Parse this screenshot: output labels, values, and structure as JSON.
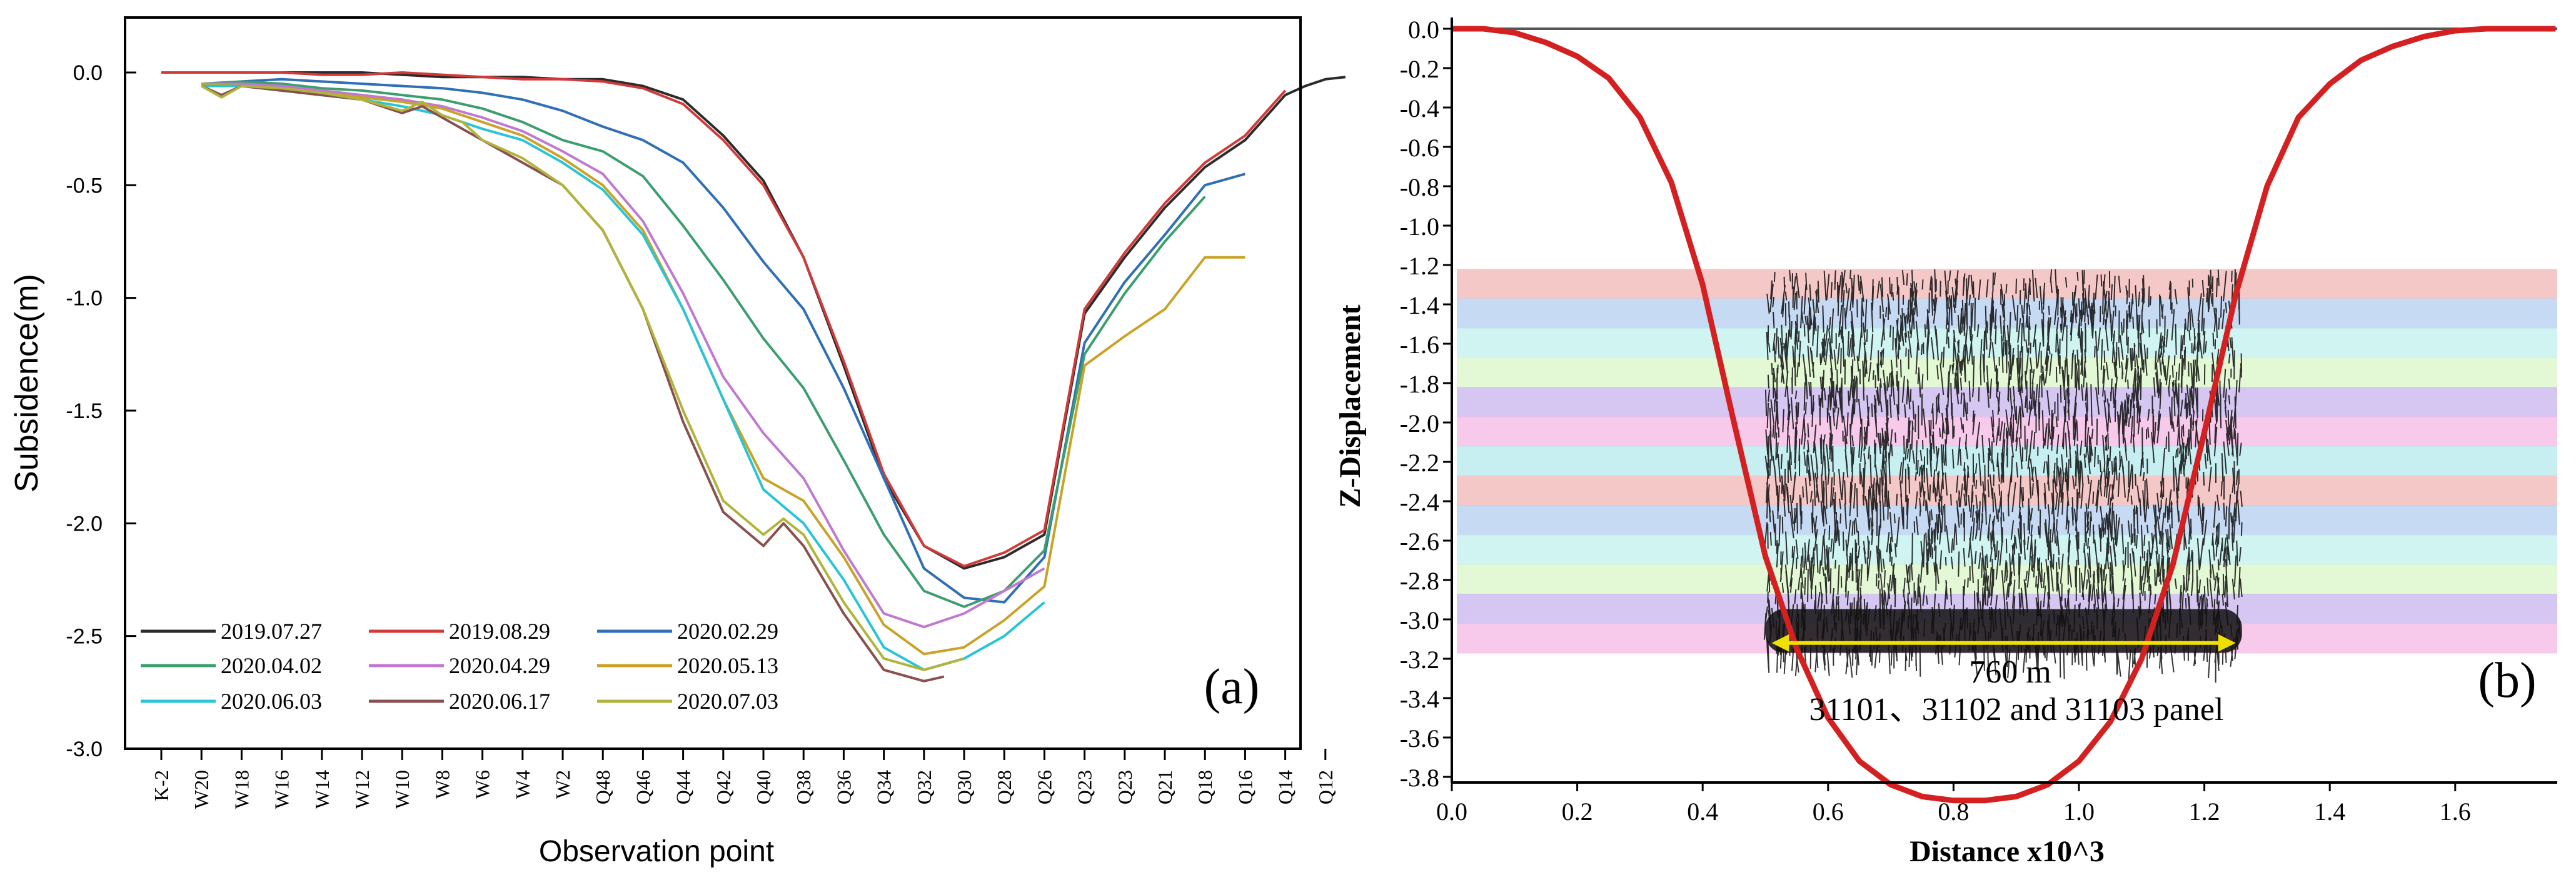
{
  "chart_data": [
    {
      "type": "line",
      "panel_label": "(a)",
      "xlabel": "Observation point",
      "ylabel": "Subsidence(m)",
      "ylim": [
        -3.0,
        0.1
      ],
      "yticks": [
        0.0,
        -0.5,
        -1.0,
        -1.5,
        -2.0,
        -2.5,
        -3.0
      ],
      "ytick_labels": [
        "0.0",
        "-0.5",
        "-1.0",
        "-1.5",
        "-2.0",
        "-2.5",
        "-3.0"
      ],
      "categories": [
        "K-2",
        "W20",
        "W18",
        "W16",
        "W14",
        "W12",
        "W10",
        "W8",
        "W6",
        "W4",
        "W2",
        "Q48",
        "Q46",
        "Q44",
        "Q42",
        "Q40",
        "Q38",
        "Q36",
        "Q34",
        "Q32",
        "Q30",
        "Q28",
        "Q26",
        "Q23",
        "Q23",
        "Q21",
        "Q18",
        "Q16",
        "Q14",
        "Q12"
      ],
      "legend_position": "bottom-left",
      "grid": false,
      "series": [
        {
          "name": "2019.07.27",
          "color": "#2b2b2b",
          "x": [
            0,
            1,
            2,
            3,
            4,
            5,
            6,
            7,
            8,
            9,
            10,
            11,
            12,
            13,
            14,
            15,
            16,
            17,
            18,
            19,
            20,
            21,
            22,
            23,
            24,
            25,
            26,
            27,
            28,
            28.5,
            29,
            29.5
          ],
          "values": [
            0,
            0,
            0,
            0,
            0,
            0,
            -0.01,
            -0.02,
            -0.02,
            -0.02,
            -0.03,
            -0.03,
            -0.06,
            -0.12,
            -0.28,
            -0.48,
            -0.82,
            -1.3,
            -1.8,
            -2.1,
            -2.2,
            -2.15,
            -2.05,
            -1.07,
            -0.82,
            -0.6,
            -0.42,
            -0.3,
            -0.1,
            -0.06,
            -0.03,
            -0.02
          ]
        },
        {
          "name": "2019.08.29",
          "color": "#d13a3a",
          "x": [
            0,
            1,
            2,
            3,
            4,
            5,
            6,
            7,
            8,
            9,
            10,
            11,
            12,
            13,
            14,
            15,
            16,
            17,
            18,
            19,
            20,
            21,
            22,
            23,
            24,
            25,
            26,
            27,
            28
          ],
          "values": [
            0,
            0,
            0,
            0,
            -0.01,
            -0.01,
            0,
            -0.01,
            -0.02,
            -0.03,
            -0.03,
            -0.04,
            -0.07,
            -0.14,
            -0.3,
            -0.5,
            -0.82,
            -1.28,
            -1.78,
            -2.1,
            -2.19,
            -2.13,
            -2.03,
            -1.05,
            -0.8,
            -0.58,
            -0.4,
            -0.28,
            -0.08
          ]
        },
        {
          "name": "2020.02.29",
          "color": "#2f6fb5",
          "x": [
            1,
            2,
            3,
            4,
            5,
            6,
            7,
            8,
            9,
            10,
            11,
            12,
            13,
            14,
            15,
            16,
            17,
            18,
            19,
            20,
            21,
            22,
            23,
            24,
            25,
            26,
            27
          ],
          "values": [
            -0.06,
            -0.04,
            -0.03,
            -0.04,
            -0.05,
            -0.06,
            -0.07,
            -0.09,
            -0.12,
            -0.17,
            -0.24,
            -0.3,
            -0.4,
            -0.6,
            -0.84,
            -1.05,
            -1.4,
            -1.8,
            -2.2,
            -2.33,
            -2.35,
            -2.15,
            -1.2,
            -0.93,
            -0.72,
            -0.5,
            -0.45
          ]
        },
        {
          "name": "2020.04.02",
          "color": "#3c9e6e",
          "x": [
            1,
            2,
            3,
            4,
            5,
            6,
            7,
            8,
            9,
            10,
            11,
            12,
            13,
            14,
            15,
            16,
            17,
            18,
            19,
            20,
            21,
            22,
            23,
            24,
            25,
            26
          ],
          "values": [
            -0.05,
            -0.04,
            -0.05,
            -0.07,
            -0.08,
            -0.1,
            -0.12,
            -0.16,
            -0.22,
            -0.3,
            -0.35,
            -0.46,
            -0.68,
            -0.92,
            -1.18,
            -1.4,
            -1.72,
            -2.05,
            -2.3,
            -2.37,
            -2.3,
            -2.12,
            -1.25,
            -0.98,
            -0.75,
            -0.55
          ]
        },
        {
          "name": "2020.04.29",
          "color": "#c079d0",
          "x": [
            1,
            2,
            3,
            4,
            5,
            6,
            7,
            8,
            9,
            10,
            11,
            12,
            13,
            14,
            15,
            16,
            17,
            18,
            19,
            20,
            21,
            22
          ],
          "values": [
            -0.05,
            -0.05,
            -0.06,
            -0.08,
            -0.1,
            -0.12,
            -0.15,
            -0.2,
            -0.26,
            -0.35,
            -0.45,
            -0.66,
            -0.98,
            -1.35,
            -1.6,
            -1.8,
            -2.12,
            -2.4,
            -2.46,
            -2.4,
            -2.3,
            -2.2
          ]
        },
        {
          "name": "2020.05.13",
          "color": "#c9a227",
          "x": [
            1,
            2,
            3,
            4,
            5,
            6,
            7,
            8,
            9,
            10,
            11,
            12,
            13,
            14,
            15,
            16,
            17,
            18,
            19,
            20,
            21,
            22,
            23,
            24,
            25,
            26,
            27
          ],
          "values": [
            -0.05,
            -0.06,
            -0.07,
            -0.09,
            -0.11,
            -0.13,
            -0.16,
            -0.22,
            -0.28,
            -0.38,
            -0.5,
            -0.7,
            -1.05,
            -1.45,
            -1.8,
            -1.9,
            -2.15,
            -2.45,
            -2.58,
            -2.55,
            -2.43,
            -2.28,
            -1.3,
            -1.17,
            -1.05,
            -0.82,
            -0.82
          ]
        },
        {
          "name": "2020.06.03",
          "color": "#29c4d6",
          "x": [
            1,
            2,
            3,
            4,
            5,
            6,
            7,
            8,
            9,
            10,
            11,
            12,
            13,
            14,
            15,
            16,
            17,
            18,
            19,
            20,
            21,
            22
          ],
          "values": [
            -0.06,
            -0.06,
            -0.08,
            -0.1,
            -0.12,
            -0.15,
            -0.19,
            -0.25,
            -0.3,
            -0.4,
            -0.52,
            -0.72,
            -1.05,
            -1.45,
            -1.85,
            -2.0,
            -2.25,
            -2.55,
            -2.65,
            -2.6,
            -2.5,
            -2.35
          ]
        },
        {
          "name": "2020.06.17",
          "color": "#8a5050",
          "x": [
            1,
            1.5,
            2,
            3,
            4,
            5,
            6,
            6.5,
            7,
            7.5,
            8,
            9,
            10,
            11,
            12,
            13,
            14,
            15,
            15.5,
            16,
            17,
            18,
            19,
            19.5
          ],
          "values": [
            -0.06,
            -0.1,
            -0.06,
            -0.08,
            -0.1,
            -0.12,
            -0.18,
            -0.15,
            -0.2,
            -0.25,
            -0.3,
            -0.4,
            -0.5,
            -0.7,
            -1.05,
            -1.55,
            -1.95,
            -2.1,
            -2.0,
            -2.1,
            -2.4,
            -2.65,
            -2.7,
            -2.68
          ]
        },
        {
          "name": "2020.07.03",
          "color": "#b0b43a",
          "x": [
            1,
            1.5,
            2,
            3,
            4,
            5,
            6,
            6.5,
            7,
            7.5,
            8,
            9,
            10,
            11,
            12,
            13,
            14,
            15,
            15.5,
            16,
            17,
            18,
            19,
            20
          ],
          "values": [
            -0.06,
            -0.11,
            -0.06,
            -0.07,
            -0.09,
            -0.12,
            -0.17,
            -0.13,
            -0.19,
            -0.22,
            -0.3,
            -0.38,
            -0.5,
            -0.7,
            -1.05,
            -1.5,
            -1.9,
            -2.05,
            -1.98,
            -2.05,
            -2.35,
            -2.6,
            -2.65,
            -2.6
          ]
        }
      ]
    },
    {
      "type": "line",
      "panel_label": "(b)",
      "xlabel": "Distance x10^3",
      "ylabel": "Z-Displacement",
      "xlim": [
        0.0,
        1.76
      ],
      "ylim": [
        -3.95,
        0.05
      ],
      "xticks": [
        0.0,
        0.2,
        0.4,
        0.6,
        0.8,
        1.0,
        1.2,
        1.4,
        1.6
      ],
      "xtick_labels": [
        "0.0",
        "0.2",
        "0.4",
        "0.6",
        "0.8",
        "1.0",
        "1.2",
        "1.4",
        "1.6"
      ],
      "yticks": [
        0.0,
        -0.2,
        -0.4,
        -0.6,
        -0.8,
        -1.0,
        -1.2,
        -1.4,
        -1.6,
        -1.8,
        -2.0,
        -2.2,
        -2.4,
        -2.6,
        -2.8,
        -3.0,
        -3.2,
        -3.4,
        -3.6,
        -3.8
      ],
      "ytick_labels": [
        "0.0",
        "-0.2",
        "-0.4",
        "-0.6",
        "-0.8",
        "-1.0",
        "-1.2",
        "-1.4",
        "-1.6",
        "-1.8",
        "-2.0",
        "-2.2",
        "-2.4",
        "-2.6",
        "-2.8",
        "-3.0",
        "-3.2",
        "-3.4",
        "-3.6",
        "-3.8"
      ],
      "series": [
        {
          "color": "#d42020",
          "x": [
            0.0,
            0.05,
            0.1,
            0.15,
            0.2,
            0.25,
            0.3,
            0.35,
            0.4,
            0.45,
            0.5,
            0.55,
            0.6,
            0.65,
            0.7,
            0.75,
            0.8,
            0.85,
            0.9,
            0.95,
            1.0,
            1.05,
            1.1,
            1.15,
            1.2,
            1.25,
            1.3,
            1.35,
            1.4,
            1.45,
            1.5,
            1.55,
            1.6,
            1.65,
            1.7,
            1.76
          ],
          "values": [
            0.0,
            0.0,
            -0.02,
            -0.07,
            -0.14,
            -0.25,
            -0.45,
            -0.78,
            -1.3,
            -2.0,
            -2.68,
            -3.15,
            -3.5,
            -3.72,
            -3.84,
            -3.9,
            -3.92,
            -3.92,
            -3.9,
            -3.84,
            -3.72,
            -3.52,
            -3.2,
            -2.72,
            -2.05,
            -1.35,
            -0.8,
            -0.45,
            -0.28,
            -0.16,
            -0.09,
            -0.04,
            -0.01,
            0.0,
            0.0,
            0.0
          ]
        }
      ],
      "strata_colors": [
        "#f2b6b6",
        "#b4cdf0",
        "#bff0ee",
        "#d9f5c6",
        "#c7b4ec",
        "#f4b8e6",
        "#b4e8ec"
      ],
      "span_label": "760 m",
      "panel_caption": "31101、31102 and 31103 panel",
      "span_color": "#f0e000"
    }
  ]
}
